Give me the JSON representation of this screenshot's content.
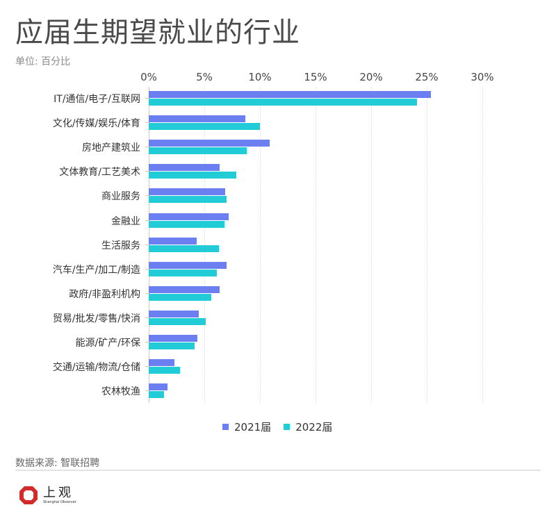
{
  "header": {
    "title": "应届生期望就业的行业",
    "unit": "单位: 百分比"
  },
  "colors": {
    "series_2021": "#6b7ff0",
    "series_2022": "#22ccd6",
    "logo_red": "#d32a2a"
  },
  "axis": {
    "ticks": [
      "0%",
      "5%",
      "10%",
      "15%",
      "20%",
      "25%",
      "30%"
    ],
    "max": 30
  },
  "legend": {
    "items": [
      {
        "label": "2021届"
      },
      {
        "label": "2022届"
      }
    ]
  },
  "footer": {
    "source": "数据来源: 智联招聘",
    "logo_cn": "上观",
    "logo_en": "Shanghai Observer"
  },
  "chart_data": {
    "type": "bar",
    "orientation": "horizontal",
    "title": "应届生期望就业的行业",
    "subtitle": "单位: 百分比",
    "xlabel": "",
    "ylabel": "",
    "xlim": [
      0,
      30
    ],
    "x_ticks": [
      "0%",
      "5%",
      "10%",
      "15%",
      "20%",
      "25%",
      "30%"
    ],
    "grid": true,
    "legend_position": "bottom",
    "categories": [
      "IT/通信/电子/互联网",
      "文化/传媒/娱乐/体育",
      "房地产建筑业",
      "文体教育/工艺美术",
      "商业服务",
      "金融业",
      "生活服务",
      "汽车/生产/加工/制造",
      "政府/非盈利机构",
      "贸易/批发/零售/快消",
      "能源/矿产/环保",
      "交通/运输/物流/仓储",
      "农林牧渔"
    ],
    "series": [
      {
        "name": "2021届",
        "values": [
          25.4,
          8.7,
          10.9,
          6.4,
          6.9,
          7.2,
          4.3,
          7.0,
          6.4,
          4.5,
          4.4,
          2.3,
          1.7
        ]
      },
      {
        "name": "2022届",
        "values": [
          24.1,
          10.0,
          8.8,
          7.9,
          7.0,
          6.8,
          6.3,
          6.1,
          5.6,
          5.1,
          4.1,
          2.8,
          1.4
        ]
      }
    ],
    "source": "数据来源: 智联招聘"
  }
}
